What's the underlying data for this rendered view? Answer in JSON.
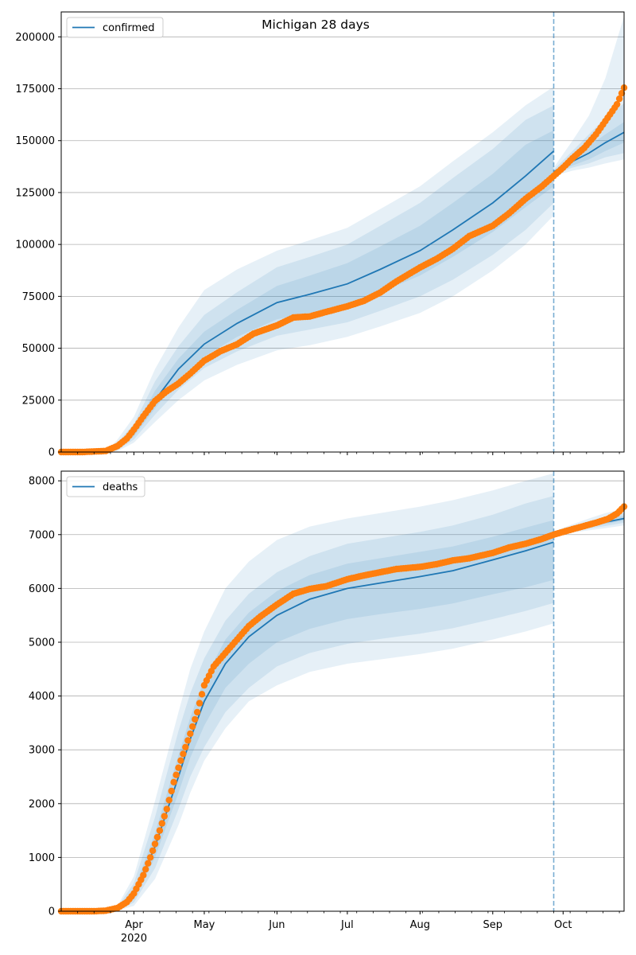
{
  "figure": {
    "title": "Michigan 28 days"
  },
  "colors": {
    "model": "#1f77b4",
    "observed": "#ff7f0e",
    "band": "#1f77b4",
    "grid": "#b0b0b0",
    "cutoff": "#1f77b4"
  },
  "x_axis": {
    "start": "2020-03-01",
    "end": "2020-10-27",
    "month_ticks": [
      {
        "date": "2020-04-01",
        "label": "Apr"
      },
      {
        "date": "2020-05-01",
        "label": "May"
      },
      {
        "date": "2020-06-01",
        "label": "Jun"
      },
      {
        "date": "2020-07-01",
        "label": "Jul"
      },
      {
        "date": "2020-08-01",
        "label": "Aug"
      },
      {
        "date": "2020-09-01",
        "label": "Sep"
      },
      {
        "date": "2020-10-01",
        "label": "Oct"
      }
    ],
    "year_label": "2020",
    "cutoff_date": "2020-09-27"
  },
  "chart_data": [
    {
      "type": "line",
      "legend": "confirmed",
      "legend_position": "top-left",
      "grid": "horizontal",
      "ylim": [
        0,
        212000
      ],
      "yticks": [
        0,
        25000,
        50000,
        75000,
        100000,
        125000,
        150000,
        175000,
        200000
      ],
      "ytick_labels": [
        "0",
        "25000",
        "50000",
        "75000",
        "100000",
        "125000",
        "150000",
        "175000",
        "200000"
      ],
      "fit": {
        "dates": [
          "2020-03-01",
          "2020-03-20",
          "2020-03-25",
          "2020-04-01",
          "2020-04-10",
          "2020-04-20",
          "2020-05-01",
          "2020-05-15",
          "2020-06-01",
          "2020-06-15",
          "2020-07-01",
          "2020-07-15",
          "2020-08-01",
          "2020-08-15",
          "2020-09-01",
          "2020-09-15",
          "2020-09-27"
        ],
        "median": [
          0,
          0,
          2000,
          9000,
          25000,
          40000,
          52000,
          62000,
          72000,
          76000,
          81000,
          88000,
          97000,
          107000,
          120000,
          133000,
          145000
        ],
        "band_50": [
          [
            0,
            0
          ],
          [
            0,
            0
          ],
          [
            1500,
            3000
          ],
          [
            7500,
            11000
          ],
          [
            21000,
            29500
          ],
          [
            35000,
            45000
          ],
          [
            46000,
            58000
          ],
          [
            55500,
            68500
          ],
          [
            64000,
            80000
          ],
          [
            67000,
            85000
          ],
          [
            71000,
            91000
          ],
          [
            77000,
            99000
          ],
          [
            85000,
            109000
          ],
          [
            94000,
            120000
          ],
          [
            106000,
            134000
          ],
          [
            118000,
            148000
          ],
          [
            128000,
            155000
          ]
        ],
        "band_80": [
          [
            0,
            0
          ],
          [
            0,
            0
          ],
          [
            900,
            4500
          ],
          [
            6000,
            13500
          ],
          [
            18000,
            34000
          ],
          [
            30000,
            51000
          ],
          [
            40500,
            66000
          ],
          [
            48500,
            77000
          ],
          [
            56000,
            89000
          ],
          [
            59000,
            94000
          ],
          [
            62500,
            100000
          ],
          [
            68000,
            109000
          ],
          [
            75000,
            120000
          ],
          [
            83000,
            132000
          ],
          [
            95000,
            146000
          ],
          [
            107000,
            160000
          ],
          [
            120000,
            167000
          ]
        ],
        "band_95": [
          [
            0,
            0
          ],
          [
            0,
            0
          ],
          [
            400,
            6000
          ],
          [
            4500,
            17000
          ],
          [
            14500,
            40000
          ],
          [
            25000,
            60000
          ],
          [
            34500,
            78000
          ],
          [
            42000,
            88000
          ],
          [
            49000,
            97000
          ],
          [
            51500,
            102000
          ],
          [
            55500,
            108000
          ],
          [
            60500,
            117000
          ],
          [
            67000,
            128000
          ],
          [
            75000,
            140000
          ],
          [
            87500,
            154000
          ],
          [
            100000,
            167000
          ],
          [
            114000,
            176000
          ]
        ]
      },
      "forecast": {
        "dates": [
          "2020-09-27",
          "2020-10-05",
          "2020-10-12",
          "2020-10-19",
          "2020-10-27"
        ],
        "median": [
          135000,
          140000,
          144000,
          149000,
          154000
        ],
        "band_50": [
          [
            134500,
            135500
          ],
          [
            138000,
            142000
          ],
          [
            141000,
            147500
          ],
          [
            145000,
            153000
          ],
          [
            149000,
            159000
          ]
        ],
        "band_80": [
          [
            134000,
            136000
          ],
          [
            137000,
            145000
          ],
          [
            139000,
            153000
          ],
          [
            142000,
            161000
          ],
          [
            144000,
            168000
          ]
        ],
        "band_95": [
          [
            133000,
            137000
          ],
          [
            135500,
            150000
          ],
          [
            137000,
            162000
          ],
          [
            139000,
            180000
          ],
          [
            141000,
            210000
          ]
        ]
      },
      "observed": {
        "dates": [
          "2020-03-01",
          "2020-03-10",
          "2020-03-20",
          "2020-03-25",
          "2020-03-29",
          "2020-04-01",
          "2020-04-05",
          "2020-04-10",
          "2020-04-15",
          "2020-04-20",
          "2020-04-25",
          "2020-05-01",
          "2020-05-08",
          "2020-05-15",
          "2020-05-22",
          "2020-06-01",
          "2020-06-08",
          "2020-06-15",
          "2020-06-22",
          "2020-07-01",
          "2020-07-08",
          "2020-07-15",
          "2020-07-22",
          "2020-08-01",
          "2020-08-08",
          "2020-08-15",
          "2020-08-22",
          "2020-09-01",
          "2020-09-08",
          "2020-09-15",
          "2020-09-22",
          "2020-09-27",
          "2020-10-01",
          "2020-10-05",
          "2020-10-10",
          "2020-10-15",
          "2020-10-20",
          "2020-10-24",
          "2020-10-27"
        ],
        "values": [
          0,
          0,
          500,
          2900,
          6500,
          10800,
          17200,
          24600,
          29300,
          33000,
          37800,
          44000,
          48600,
          51900,
          57000,
          61000,
          64800,
          65300,
          67500,
          70200,
          72800,
          76800,
          82200,
          88900,
          93000,
          97900,
          104000,
          109000,
          115000,
          122000,
          128000,
          133000,
          137000,
          141500,
          146500,
          153000,
          161000,
          167500,
          175500
        ]
      }
    },
    {
      "type": "line",
      "legend": "deaths",
      "legend_position": "top-left",
      "grid": "horizontal",
      "ylim": [
        0,
        8180
      ],
      "yticks": [
        0,
        1000,
        2000,
        3000,
        4000,
        5000,
        6000,
        7000,
        8000
      ],
      "ytick_labels": [
        "0",
        "1000",
        "2000",
        "3000",
        "4000",
        "5000",
        "6000",
        "7000",
        "8000"
      ],
      "fit": {
        "dates": [
          "2020-03-01",
          "2020-03-20",
          "2020-03-25",
          "2020-04-01",
          "2020-04-10",
          "2020-04-20",
          "2020-04-25",
          "2020-05-01",
          "2020-05-10",
          "2020-05-20",
          "2020-06-01",
          "2020-06-15",
          "2020-07-01",
          "2020-07-15",
          "2020-08-01",
          "2020-08-15",
          "2020-09-01",
          "2020-09-15",
          "2020-09-27"
        ],
        "median": [
          0,
          0,
          40,
          300,
          1200,
          2500,
          3200,
          3900,
          4600,
          5100,
          5500,
          5800,
          6000,
          6100,
          6220,
          6330,
          6530,
          6700,
          6860
        ],
        "band_50": [
          [
            0,
            0
          ],
          [
            0,
            0
          ],
          [
            30,
            55
          ],
          [
            220,
            400
          ],
          [
            1000,
            1450
          ],
          [
            2200,
            2900
          ],
          [
            2850,
            3600
          ],
          [
            3450,
            4300
          ],
          [
            4150,
            5050
          ],
          [
            4600,
            5550
          ],
          [
            5000,
            5950
          ],
          [
            5250,
            6250
          ],
          [
            5430,
            6460
          ],
          [
            5520,
            6560
          ],
          [
            5620,
            6680
          ],
          [
            5720,
            6780
          ],
          [
            5890,
            6960
          ],
          [
            6020,
            7130
          ],
          [
            6160,
            7270
          ]
        ],
        "band_80": [
          [
            0,
            0
          ],
          [
            0,
            0
          ],
          [
            20,
            75
          ],
          [
            160,
            520
          ],
          [
            800,
            1750
          ],
          [
            1900,
            3350
          ],
          [
            2500,
            4050
          ],
          [
            3050,
            4700
          ],
          [
            3700,
            5400
          ],
          [
            4150,
            5900
          ],
          [
            4550,
            6300
          ],
          [
            4800,
            6600
          ],
          [
            4970,
            6830
          ],
          [
            5060,
            6930
          ],
          [
            5160,
            7050
          ],
          [
            5260,
            7170
          ],
          [
            5430,
            7370
          ],
          [
            5580,
            7580
          ],
          [
            5730,
            7720
          ]
        ],
        "band_95": [
          [
            0,
            0
          ],
          [
            0,
            0
          ],
          [
            10,
            100
          ],
          [
            100,
            650
          ],
          [
            600,
            2050
          ],
          [
            1600,
            3700
          ],
          [
            2200,
            4500
          ],
          [
            2800,
            5200
          ],
          [
            3400,
            6000
          ],
          [
            3900,
            6500
          ],
          [
            4200,
            6900
          ],
          [
            4450,
            7150
          ],
          [
            4600,
            7300
          ],
          [
            4680,
            7400
          ],
          [
            4780,
            7520
          ],
          [
            4880,
            7640
          ],
          [
            5050,
            7820
          ],
          [
            5200,
            8000
          ],
          [
            5350,
            8140
          ]
        ]
      },
      "forecast": {
        "dates": [
          "2020-09-27",
          "2020-10-05",
          "2020-10-12",
          "2020-10-19",
          "2020-10-27"
        ],
        "median": [
          7030,
          7100,
          7170,
          7230,
          7300
        ],
        "band_50": [
          [
            7020,
            7040
          ],
          [
            7080,
            7130
          ],
          [
            7140,
            7210
          ],
          [
            7200,
            7280
          ],
          [
            7260,
            7350
          ]
        ],
        "band_80": [
          [
            7010,
            7050
          ],
          [
            7060,
            7160
          ],
          [
            7110,
            7250
          ],
          [
            7160,
            7330
          ],
          [
            7220,
            7400
          ]
        ],
        "band_95": [
          [
            7000,
            7060
          ],
          [
            7040,
            7190
          ],
          [
            7080,
            7300
          ],
          [
            7120,
            7400
          ],
          [
            7170,
            7480
          ]
        ]
      },
      "observed": {
        "dates": [
          "2020-03-01",
          "2020-03-15",
          "2020-03-20",
          "2020-03-25",
          "2020-03-29",
          "2020-04-01",
          "2020-04-05",
          "2020-04-08",
          "2020-04-12",
          "2020-04-15",
          "2020-04-18",
          "2020-04-21",
          "2020-04-25",
          "2020-04-28",
          "2020-05-01",
          "2020-05-05",
          "2020-05-10",
          "2020-05-15",
          "2020-05-20",
          "2020-05-25",
          "2020-06-01",
          "2020-06-08",
          "2020-06-15",
          "2020-06-22",
          "2020-07-01",
          "2020-07-08",
          "2020-07-15",
          "2020-07-22",
          "2020-08-01",
          "2020-08-08",
          "2020-08-15",
          "2020-08-22",
          "2020-09-01",
          "2020-09-08",
          "2020-09-15",
          "2020-09-22",
          "2020-09-27",
          "2020-10-01",
          "2020-10-05",
          "2020-10-10",
          "2020-10-15",
          "2020-10-20",
          "2020-10-24",
          "2020-10-27"
        ],
        "values": [
          0,
          0,
          10,
          60,
          170,
          330,
          670,
          1000,
          1500,
          1900,
          2400,
          2800,
          3300,
          3700,
          4200,
          4550,
          4800,
          5050,
          5300,
          5480,
          5700,
          5900,
          5990,
          6040,
          6170,
          6240,
          6300,
          6360,
          6400,
          6450,
          6520,
          6560,
          6660,
          6760,
          6830,
          6920,
          7000,
          7050,
          7100,
          7160,
          7220,
          7290,
          7390,
          7520
        ]
      }
    }
  ]
}
